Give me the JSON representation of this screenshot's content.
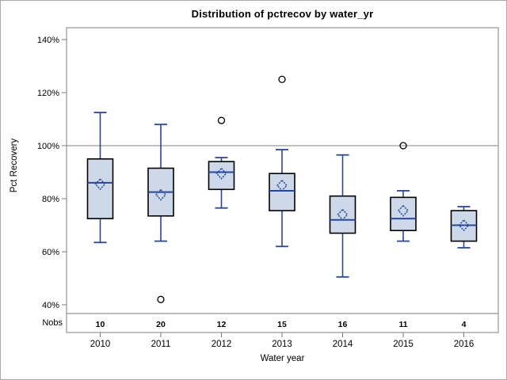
{
  "chart_data": {
    "type": "box",
    "title": "Distribution of pctrecov by water_yr",
    "xlabel": "Water year",
    "ylabel": "Pct Recovery",
    "nobs_row_label": "Nobs",
    "y_unit": "%",
    "y_ticks": [
      140,
      120,
      100,
      80,
      60,
      40
    ],
    "ylim": [
      36.5,
      144.5
    ],
    "reference_line": 100,
    "grid": "horizontal reference line at 100% only",
    "legend": "none",
    "categories": [
      "2010",
      "2011",
      "2012",
      "2013",
      "2014",
      "2015",
      "2016"
    ],
    "boxes": [
      {
        "year": "2010",
        "nobs": "10",
        "whisker_low": 63.5,
        "q1": 72.5,
        "median": 86,
        "mean": 85.5,
        "q3": 95,
        "whisker_high": 112.5,
        "outliers": []
      },
      {
        "year": "2011",
        "nobs": "20",
        "whisker_low": 64,
        "q1": 73.5,
        "median": 82.5,
        "mean": 81.5,
        "q3": 91.5,
        "whisker_high": 108,
        "outliers": [
          42
        ]
      },
      {
        "year": "2012",
        "nobs": "12",
        "whisker_low": 76.5,
        "q1": 83.5,
        "median": 90,
        "mean": 89.5,
        "q3": 94,
        "whisker_high": 95.5,
        "outliers": [
          109.5
        ]
      },
      {
        "year": "2013",
        "nobs": "15",
        "whisker_low": 62,
        "q1": 75.5,
        "median": 83,
        "mean": 85,
        "q3": 89.5,
        "whisker_high": 98.5,
        "outliers": [
          125
        ]
      },
      {
        "year": "2014",
        "nobs": "16",
        "whisker_low": 50.5,
        "q1": 67,
        "median": 72,
        "mean": 74,
        "q3": 81,
        "whisker_high": 96.5,
        "outliers": []
      },
      {
        "year": "2015",
        "nobs": "11",
        "whisker_low": 64,
        "q1": 68,
        "median": 72.5,
        "mean": 75.5,
        "q3": 80.5,
        "whisker_high": 83,
        "outliers": [
          100
        ]
      },
      {
        "year": "2016",
        "nobs": "4",
        "whisker_low": 61.5,
        "q1": 64,
        "median": 70,
        "mean": 70,
        "q3": 75.5,
        "whisker_high": 77,
        "outliers": []
      }
    ],
    "colors": {
      "box_fill": "#CDD8E8",
      "box_border": "#000000",
      "line_blue": "#26479E",
      "outlier_stroke": "#000000",
      "reference_line": "#ABABAB",
      "frame": "#949494",
      "tick": "#7A7A7A"
    }
  }
}
